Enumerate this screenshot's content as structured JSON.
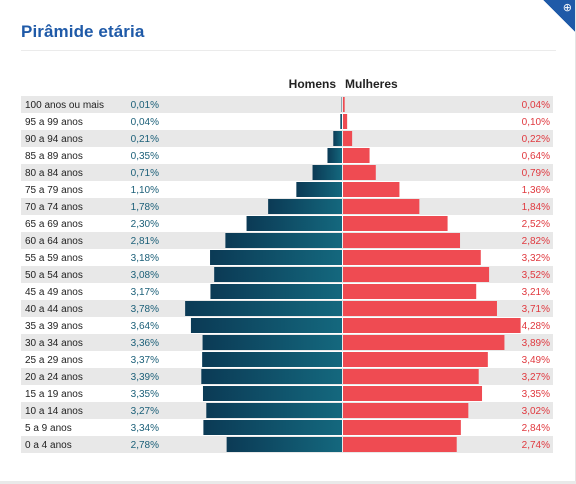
{
  "title": "Pirâmide etária",
  "zoom_icon": "zoom-in-icon",
  "colors": {
    "title": "#1f5aa8",
    "male_dark": "#0b3a55",
    "male_light": "#14687e",
    "female": "#ef4b52",
    "female_text": "#e0393f",
    "male_text": "#1b5f78",
    "row_shade": "#e8e8e8"
  },
  "chart_data": {
    "type": "bar",
    "subtype": "population-pyramid",
    "title": "Pirâmide etária",
    "series_labels": {
      "male": "Homens",
      "female": "Mulheres"
    },
    "unit": "%",
    "categories": [
      "100 anos ou mais",
      "95 a 99 anos",
      "90 a 94 anos",
      "85 a 89 anos",
      "80 a 84 anos",
      "75 a 79 anos",
      "70 a 74 anos",
      "65 a 69 anos",
      "60 a 64 anos",
      "55 a 59 anos",
      "50 a 54 anos",
      "45 a 49 anos",
      "40 a 44 anos",
      "35 a 39 anos",
      "30 a 34 anos",
      "25 a 29 anos",
      "20 a 24 anos",
      "15 a 19 anos",
      "10 a 14 anos",
      "5 a 9 anos",
      "0 a 4 anos"
    ],
    "series": [
      {
        "name": "Homens",
        "values": [
          0.01,
          0.04,
          0.21,
          0.35,
          0.71,
          1.1,
          1.78,
          2.3,
          2.81,
          3.18,
          3.08,
          3.17,
          3.78,
          3.64,
          3.36,
          3.37,
          3.39,
          3.35,
          3.27,
          3.34,
          2.78
        ],
        "labels": [
          "0,01%",
          "0,04%",
          "0,21%",
          "0,35%",
          "0,71%",
          "1,10%",
          "1,78%",
          "2,30%",
          "2,81%",
          "3,18%",
          "3,08%",
          "3,17%",
          "3,78%",
          "3,64%",
          "3,36%",
          "3,37%",
          "3,39%",
          "3,35%",
          "3,27%",
          "3,34%",
          "2,78%"
        ]
      },
      {
        "name": "Mulheres",
        "values": [
          0.04,
          0.1,
          0.22,
          0.64,
          0.79,
          1.36,
          1.84,
          2.52,
          2.82,
          3.32,
          3.52,
          3.21,
          3.71,
          4.28,
          3.89,
          3.49,
          3.27,
          3.35,
          3.02,
          2.84,
          2.74
        ],
        "labels": [
          "0,04%",
          "0,10%",
          "0,22%",
          "0,64%",
          "0,79%",
          "1,36%",
          "1,84%",
          "2,52%",
          "2,82%",
          "3,32%",
          "3,52%",
          "3,21%",
          "3,71%",
          "4,28%",
          "3,89%",
          "3,49%",
          "3,27%",
          "3,35%",
          "3,02%",
          "2,84%",
          "2,74%"
        ]
      }
    ],
    "alternating_row_shading": true
  }
}
